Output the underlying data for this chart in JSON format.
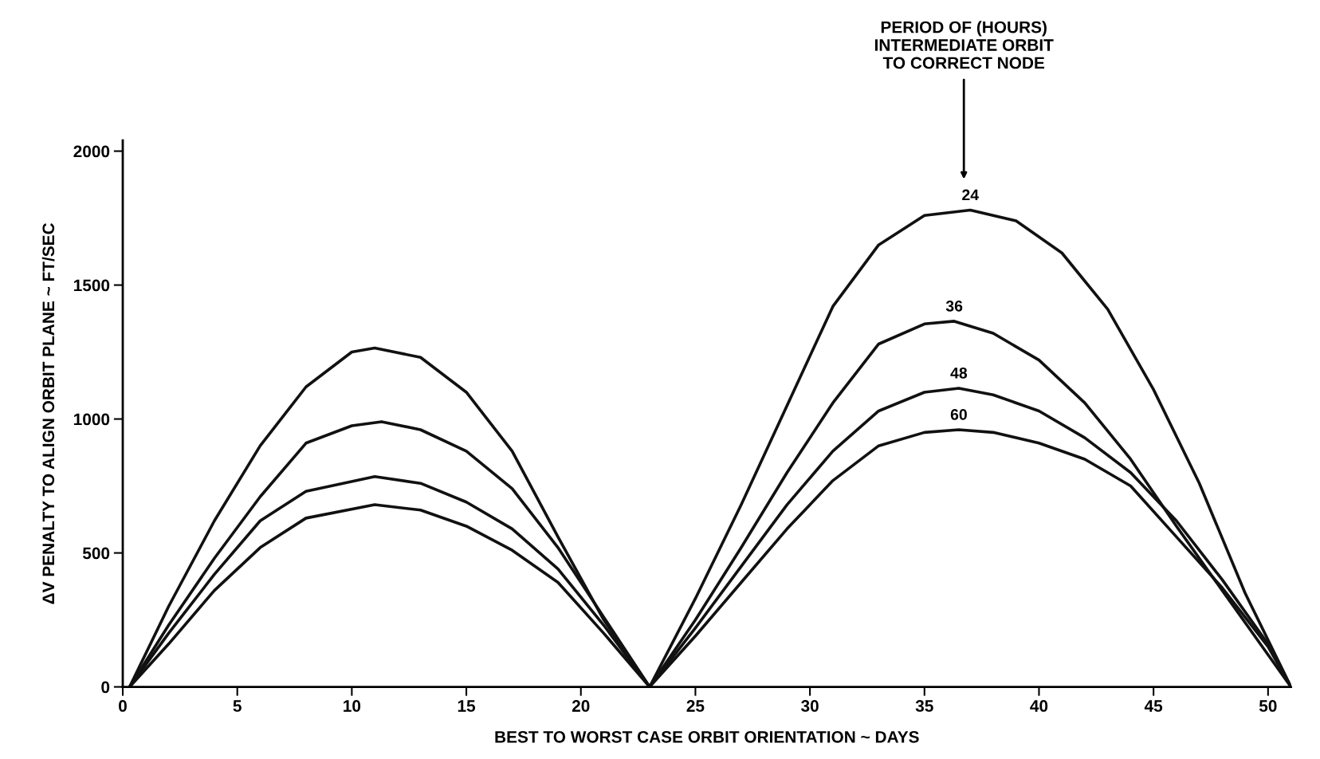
{
  "chart_data": {
    "type": "line",
    "xlabel": "BEST TO WORST CASE ORBIT ORIENTATION ~ DAYS",
    "ylabel": "ΔV PENALTY TO ALIGN ORBIT PLANE ~ FT/SEC",
    "xlim": [
      0,
      51
    ],
    "xticks": [
      0,
      5,
      10,
      15,
      20,
      25,
      30,
      35,
      40,
      45,
      50
    ],
    "ylim": [
      0,
      2040
    ],
    "yticks": [
      0,
      500,
      1000,
      1500,
      2000
    ],
    "grid": false,
    "legend": false,
    "marker": "none",
    "line_style": "solid",
    "annotations": [
      "PERIOD OF (HOURS)\nINTERMEDIATE ORBIT\nTO CORRECT NODE"
    ],
    "series": [
      {
        "name": "24",
        "color": "#111111",
        "x": [
          0.3,
          2,
          4,
          6,
          8,
          10,
          11,
          13,
          15,
          17,
          19,
          21,
          23,
          25,
          27,
          29,
          31,
          33,
          35,
          37,
          39,
          41,
          43,
          45,
          47,
          49,
          51
        ],
        "values": [
          0,
          300,
          620,
          900,
          1120,
          1250,
          1265,
          1230,
          1100,
          880,
          560,
          250,
          0,
          330,
          680,
          1050,
          1420,
          1650,
          1760,
          1780,
          1740,
          1620,
          1410,
          1110,
          760,
          350,
          0
        ]
      },
      {
        "name": "36",
        "color": "#111111",
        "x": [
          0.3,
          2,
          4,
          6,
          8,
          10,
          11.3,
          13,
          15,
          17,
          19,
          21,
          23,
          25,
          27,
          29,
          31,
          33,
          35,
          36.3,
          38,
          40,
          42,
          44,
          46,
          48,
          50,
          51
        ],
        "values": [
          0,
          230,
          480,
          710,
          910,
          975,
          990,
          960,
          880,
          740,
          520,
          260,
          0,
          250,
          520,
          800,
          1060,
          1280,
          1355,
          1365,
          1320,
          1220,
          1060,
          850,
          600,
          360,
          120,
          0
        ]
      },
      {
        "name": "48",
        "color": "#111111",
        "x": [
          0.3,
          2,
          4,
          6,
          8,
          11,
          13,
          15,
          17,
          19,
          21,
          23,
          25,
          27,
          29,
          31,
          33,
          35,
          36.5,
          38,
          40,
          42,
          44,
          46,
          48,
          50,
          51
        ],
        "values": [
          0,
          200,
          420,
          620,
          730,
          785,
          760,
          690,
          590,
          440,
          230,
          0,
          220,
          450,
          680,
          880,
          1030,
          1100,
          1115,
          1090,
          1030,
          930,
          800,
          620,
          400,
          160,
          0
        ]
      },
      {
        "name": "60",
        "color": "#111111",
        "x": [
          0.3,
          2,
          4,
          6,
          8,
          11,
          13,
          15,
          17,
          19,
          21,
          23,
          25,
          27,
          29,
          31,
          33,
          35,
          36.5,
          38,
          40,
          42,
          44,
          46,
          48,
          50,
          51
        ],
        "values": [
          0,
          160,
          360,
          520,
          630,
          680,
          660,
          600,
          510,
          390,
          200,
          0,
          190,
          390,
          590,
          770,
          900,
          950,
          960,
          950,
          910,
          850,
          750,
          560,
          370,
          150,
          0
        ]
      }
    ]
  }
}
